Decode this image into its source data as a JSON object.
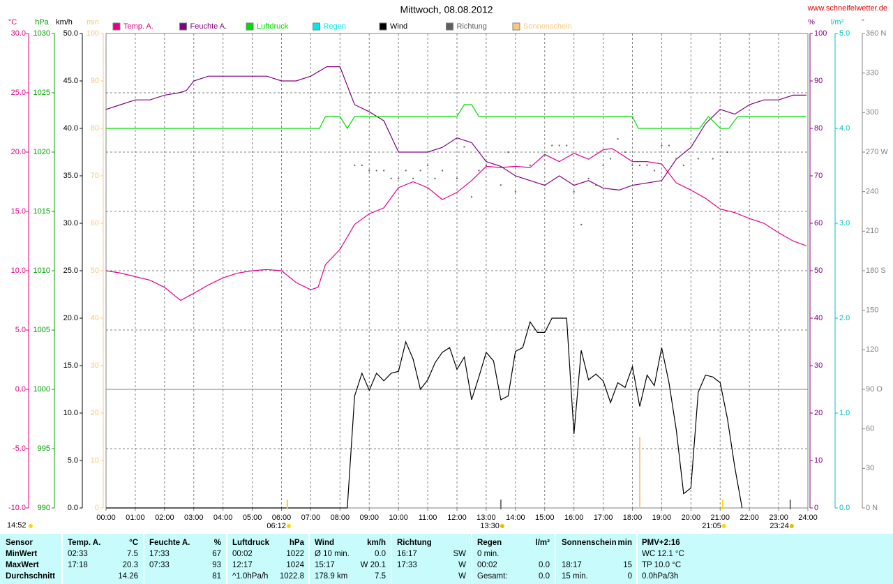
{
  "chart_data": {
    "type": "line",
    "title": "Mittwoch, 08.08.2012",
    "source": "www.schneifelwetter.de",
    "timestamp": "14:52",
    "xlim": [
      0,
      24
    ],
    "xticks": [
      {
        "value": 0,
        "label": "00:00"
      },
      {
        "value": 1,
        "label": "01:00"
      },
      {
        "value": 2,
        "label": "02:00"
      },
      {
        "value": 3,
        "label": "03:00"
      },
      {
        "value": 4,
        "label": "04:00"
      },
      {
        "value": 5,
        "label": "05:00"
      },
      {
        "value": 6,
        "label": "06:00"
      },
      {
        "value": 7,
        "label": "07:00"
      },
      {
        "value": 8,
        "label": "08:00"
      },
      {
        "value": 9,
        "label": "09:00"
      },
      {
        "value": 10,
        "label": "10:00"
      },
      {
        "value": 11,
        "label": "11:00"
      },
      {
        "value": 12,
        "label": "12:00"
      },
      {
        "value": 13,
        "label": "13:00"
      },
      {
        "value": 14,
        "label": "14:00"
      },
      {
        "value": 15,
        "label": "15:00"
      },
      {
        "value": 16,
        "label": "16:00"
      },
      {
        "value": 17,
        "label": "17:00"
      },
      {
        "value": 18,
        "label": "18:00"
      },
      {
        "value": 19,
        "label": "19:00"
      },
      {
        "value": 20,
        "label": "20:00"
      },
      {
        "value": 21,
        "label": "21:00"
      },
      {
        "value": 22,
        "label": "22:00"
      },
      {
        "value": 23,
        "label": "23:00"
      },
      {
        "value": 24,
        "label": "24:00"
      }
    ],
    "grid": true,
    "axes": [
      {
        "unit": "°C",
        "color": "#e0007f",
        "lim": [
          -10,
          30
        ],
        "ticks": [
          {
            "value": -10,
            "label": "-10.0"
          },
          {
            "value": -5,
            "label": "-5.0"
          },
          {
            "value": 0,
            "label": "0.0"
          },
          {
            "value": 5,
            "label": "5.0"
          },
          {
            "value": 10,
            "label": "10.0"
          },
          {
            "value": 15,
            "label": "15.0"
          },
          {
            "value": 20,
            "label": "20.0"
          },
          {
            "value": 25,
            "label": "25.0"
          },
          {
            "value": 30,
            "label": "30.0"
          }
        ]
      },
      {
        "unit": "hPa",
        "color": "#00a000",
        "lim": [
          990,
          1030
        ],
        "ticks": [
          990,
          995,
          1000,
          1005,
          1010,
          1015,
          1020,
          1025,
          1030
        ]
      },
      {
        "unit": "km/h",
        "color": "#000000",
        "lim": [
          0,
          50
        ],
        "ticks": [
          {
            "value": 0,
            "label": "0.0"
          },
          {
            "value": 5,
            "label": "5.0"
          },
          {
            "value": 10,
            "label": "10.0"
          },
          {
            "value": 15,
            "label": "15.0"
          },
          {
            "value": 20,
            "label": "20.0"
          },
          {
            "value": 25,
            "label": "25.0"
          },
          {
            "value": 30,
            "label": "30.0"
          },
          {
            "value": 35,
            "label": "35.0"
          },
          {
            "value": 40,
            "label": "40.0"
          },
          {
            "value": 45,
            "label": "45.0"
          },
          {
            "value": 50,
            "label": "50.0"
          }
        ]
      },
      {
        "unit": "min",
        "color": "#f8c880",
        "lim": [
          0,
          100
        ],
        "ticks": [
          0,
          10,
          20,
          30,
          40,
          50,
          60,
          70,
          80,
          90,
          100
        ]
      },
      {
        "unit": "%",
        "color": "#800080",
        "lim": [
          0,
          100
        ],
        "ticks": [
          0,
          10,
          20,
          30,
          40,
          50,
          60,
          70,
          80,
          90,
          100
        ]
      },
      {
        "unit": "l/m²",
        "color": "#00c0c0",
        "lim": [
          0,
          5
        ],
        "ticks": [
          {
            "value": 0,
            "label": "0.0"
          },
          {
            "value": 1,
            "label": "1.0"
          },
          {
            "value": 2,
            "label": "2.0"
          },
          {
            "value": 3,
            "label": "3.0"
          },
          {
            "value": 4,
            "label": "4.0"
          },
          {
            "value": 5,
            "label": "5.0"
          }
        ]
      },
      {
        "unit": "°",
        "color": "#808080",
        "lim": [
          0,
          360
        ],
        "ticks": [
          {
            "value": 0,
            "label": "0 N"
          },
          30,
          60,
          {
            "value": 90,
            "label": "90 O"
          },
          120,
          150,
          {
            "value": 180,
            "label": "180 S"
          },
          210,
          240,
          {
            "value": 270,
            "label": "270 W"
          },
          300,
          330,
          {
            "value": 360,
            "label": "360 N"
          }
        ]
      }
    ],
    "series": [
      {
        "name": "Temp. A.",
        "color": "#e0008a",
        "axis": 0,
        "mark": "line",
        "x": [
          0,
          0.5,
          1,
          1.5,
          2,
          2.55,
          3,
          3.5,
          4,
          4.5,
          5,
          5.5,
          6,
          6.5,
          7,
          7.25,
          7.5,
          8,
          8.5,
          9,
          9.5,
          10,
          10.5,
          11,
          11.5,
          12,
          12.5,
          13,
          13.5,
          14,
          14.5,
          15,
          15.5,
          16,
          16.5,
          17,
          17.3,
          17.5,
          18,
          18.5,
          19,
          19.5,
          20,
          20.5,
          21,
          21.5,
          22,
          22.5,
          23,
          23.5,
          23.95
        ],
        "values": [
          10.0,
          9.8,
          9.5,
          9.2,
          8.6,
          7.5,
          8.1,
          8.8,
          9.4,
          9.8,
          10.0,
          10.1,
          10.0,
          9.0,
          8.4,
          8.6,
          10.5,
          11.8,
          13.9,
          14.8,
          15.3,
          17.0,
          17.5,
          17.0,
          16.0,
          16.6,
          17.6,
          18.8,
          18.7,
          18.8,
          18.7,
          19.8,
          19.2,
          19.9,
          19.4,
          20.2,
          20.3,
          20.0,
          19.2,
          19.2,
          19.0,
          17.4,
          16.8,
          16.1,
          15.2,
          14.9,
          14.4,
          14.0,
          13.2,
          12.5,
          12.1
        ]
      },
      {
        "name": "Feuchte A.",
        "color": "#800080",
        "axis": 4,
        "mark": "line",
        "x": [
          0,
          0.5,
          1,
          1.5,
          2,
          2.5,
          2.75,
          3,
          3.5,
          4,
          4.5,
          5,
          5.5,
          6,
          6.5,
          7,
          7.55,
          8,
          8.5,
          9,
          9.5,
          10,
          10.5,
          11,
          11.5,
          12,
          12.5,
          13,
          13.5,
          14,
          14.5,
          15,
          15.5,
          16,
          16.5,
          17,
          17.55,
          18,
          18.5,
          19,
          19.5,
          20,
          20.5,
          21,
          21.5,
          22,
          22.5,
          23,
          23.5,
          23.95
        ],
        "values": [
          84,
          85,
          86,
          86,
          87,
          87.5,
          88,
          90,
          91,
          91,
          91,
          91,
          91,
          90,
          90,
          91,
          93,
          93,
          85,
          83.5,
          81.6,
          75,
          75,
          75,
          76,
          78,
          77,
          73,
          72,
          70,
          69,
          68,
          70,
          68,
          69,
          67.4,
          67,
          68,
          68.5,
          69,
          73.5,
          76,
          81,
          84,
          83,
          85,
          86,
          86,
          87,
          87
        ]
      },
      {
        "name": "Luftdruck",
        "color": "#00dd00",
        "axis": 1,
        "mark": "line",
        "x": [
          0,
          7.3,
          7.5,
          8,
          8.25,
          8.5,
          12,
          12.25,
          12.5,
          12.75,
          18,
          18.2,
          20.3,
          20.6,
          21,
          21.3,
          21.6,
          23.95
        ],
        "values": [
          1022,
          1022,
          1023,
          1023,
          1022,
          1023,
          1023,
          1024,
          1024,
          1023,
          1023,
          1022,
          1022,
          1023,
          1022,
          1022,
          1023,
          1023
        ]
      },
      {
        "name": "Regen",
        "color": "#00e8e8",
        "axis": 5,
        "mark": "bar",
        "x": [],
        "values": []
      },
      {
        "name": "Wind",
        "color": "#000000",
        "axis": 2,
        "mark": "line",
        "x": [
          0,
          8.25,
          8.5,
          8.75,
          9,
          9.25,
          9.5,
          9.75,
          10,
          10.25,
          10.5,
          10.75,
          11,
          11.25,
          11.5,
          11.75,
          12,
          12.25,
          12.5,
          12.75,
          13,
          13.25,
          13.5,
          13.75,
          14,
          14.25,
          14.5,
          14.75,
          15,
          15.25,
          15.5,
          15.75,
          16,
          16.25,
          16.5,
          16.75,
          17,
          17.25,
          17.5,
          17.75,
          18,
          18.25,
          18.5,
          18.75,
          19,
          19.25,
          19.5,
          19.75,
          20,
          20.25,
          20.5,
          20.75,
          21,
          21.25,
          21.5,
          21.75
        ],
        "values": [
          0,
          0,
          11.8,
          14.2,
          12.4,
          14.2,
          13.4,
          14.2,
          14.4,
          17.5,
          15.7,
          12.5,
          13.5,
          15.3,
          16.4,
          16.9,
          14.6,
          15.9,
          11.4,
          13.8,
          16.4,
          15.5,
          11.4,
          11.8,
          16.5,
          16.9,
          19.6,
          18.5,
          18.5,
          20.0,
          20.0,
          20.0,
          7.8,
          16.6,
          13.5,
          14.1,
          13.4,
          11.1,
          13.2,
          12.7,
          14.9,
          10.7,
          14.0,
          12.9,
          16.9,
          13.2,
          8.2,
          1.5,
          2.1,
          12.2,
          14.0,
          13.8,
          13.2,
          9.4,
          4.3,
          0
        ]
      },
      {
        "name": "Richtung",
        "color": "#606060",
        "axis": 6,
        "mark": "dot",
        "x": [
          8.5,
          8.75,
          9,
          9.25,
          9.5,
          9.75,
          10,
          10.25,
          10.5,
          10.75,
          11,
          11.25,
          11.5,
          12,
          12.25,
          12.5,
          12.75,
          13,
          13.5,
          13.75,
          14,
          14.5,
          15,
          15.25,
          15.5,
          15.75,
          16,
          16.25,
          16.5,
          16.75,
          17,
          17.25,
          17.5,
          17.75,
          18,
          18.25,
          18.5,
          18.75,
          19,
          19.25,
          19.5,
          19.75,
          20.25,
          20.75,
          21.25
        ],
        "values": [
          260,
          260,
          256,
          256,
          256,
          250,
          250,
          256,
          250,
          256,
          260,
          250,
          256,
          250,
          274,
          236,
          256,
          260,
          245,
          270,
          240,
          260,
          268,
          275,
          275,
          275,
          240,
          215,
          250,
          245,
          260,
          265,
          280,
          270,
          260,
          260,
          260,
          256,
          275,
          275,
          265,
          260,
          265,
          265,
          270
        ]
      },
      {
        "name": "Sonnenschein",
        "color": "#f8c880",
        "axis": 3,
        "mark": "bar",
        "x": [
          18.25
        ],
        "values": [
          15
        ]
      }
    ],
    "markers": [
      {
        "x": 6.2,
        "label": "06:12",
        "color": "#ffd700"
      },
      {
        "x": 13.5,
        "label": "13:30",
        "color": "#707070"
      },
      {
        "x": 21.0833,
        "label": "21:05",
        "color": "#ffd700"
      },
      {
        "x": 23.4,
        "label": "23:24",
        "color": "#707070"
      }
    ]
  },
  "table": {
    "header": [
      "Sensor",
      "Temp. A.",
      "°C",
      "Feuchte A.",
      "%",
      "Luftdruck",
      "hPa",
      "Wind",
      "km/h",
      "Richtung",
      null,
      "Regen",
      "l/m²",
      "Sonnenschein",
      "min",
      "PMV+2:16"
    ],
    "rows": [
      [
        "MinWert",
        "02:33",
        "7.5",
        "17:33",
        "67",
        "00:02",
        "1022",
        "Ø 10 min.",
        "0.0",
        "16:17",
        "SW",
        "0 min.",
        null,
        null,
        null,
        "WC 12.1 °C"
      ],
      [
        "MaxWert",
        "17:18",
        "20.3",
        "07:33",
        "93",
        "12:17",
        "1024",
        "15:17",
        "W 20.1",
        "17:33",
        "W",
        "00:02",
        "0.0",
        "18:17",
        "15",
        "TP 10.0 °C"
      ],
      [
        "Durchschnitt",
        null,
        "14.26",
        null,
        "81",
        "^1.0hPa/h",
        "1022.8",
        "178.9 km",
        "7.5",
        null,
        "W",
        "Gesamt:",
        "0.0",
        "15 min.",
        "0",
        "0.0hPa/3h"
      ]
    ]
  }
}
